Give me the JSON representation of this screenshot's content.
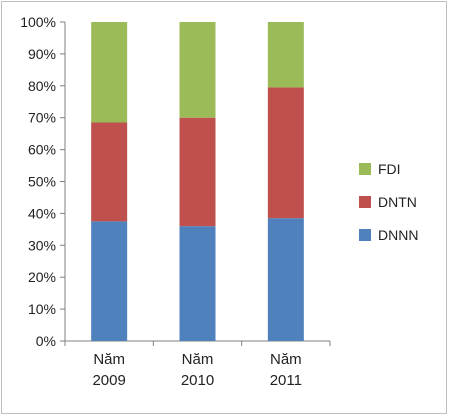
{
  "chart_data": {
    "type": "bar",
    "stacked": true,
    "percent": true,
    "categories": [
      [
        "Năm",
        "2009"
      ],
      [
        "Năm",
        "2010"
      ],
      [
        "Năm",
        "2011"
      ]
    ],
    "series": [
      {
        "name": "DNNN",
        "color": "#4f81bd",
        "values": [
          37.5,
          36,
          38.5
        ]
      },
      {
        "name": "DNTN",
        "color": "#c0504d",
        "values": [
          31,
          34,
          41
        ]
      },
      {
        "name": "FDI",
        "color": "#9bbb59",
        "values": [
          31.5,
          30,
          20.5
        ]
      }
    ],
    "ylim": [
      0,
      100
    ],
    "yticks": [
      "0%",
      "10%",
      "20%",
      "30%",
      "40%",
      "50%",
      "60%",
      "70%",
      "80%",
      "90%",
      "100%"
    ],
    "legend_order": [
      "FDI",
      "DNTN",
      "DNNN"
    ],
    "legend_position": "right",
    "grid": false,
    "title": "",
    "xlabel": "",
    "ylabel": ""
  }
}
